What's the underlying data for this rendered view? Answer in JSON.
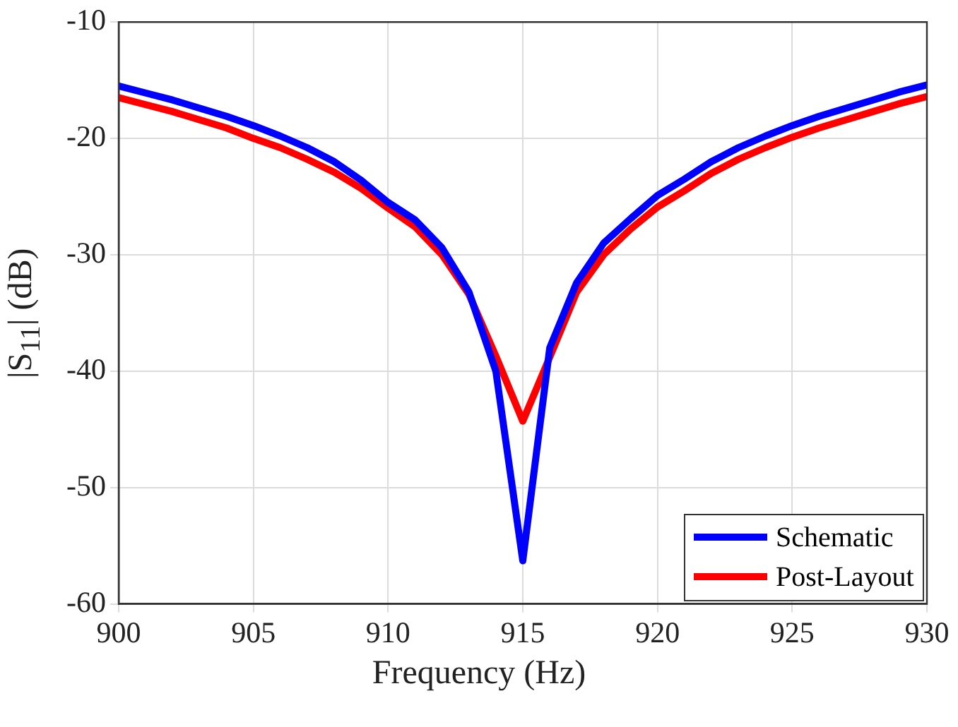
{
  "chart_data": {
    "type": "line",
    "xlabel": "Frequency (Hz)",
    "ylabel": "|S$_{11}$| (dB)",
    "x": [
      900,
      901,
      902,
      903,
      904,
      905,
      906,
      907,
      908,
      909,
      910,
      911,
      912,
      913,
      914,
      915,
      916,
      917,
      918,
      919,
      920,
      921,
      922,
      923,
      924,
      925,
      926,
      927,
      928,
      929,
      930
    ],
    "series": [
      {
        "name": "Schematic",
        "color": "#0000ff",
        "values": [
          -15.5,
          -16.1,
          -16.7,
          -17.4,
          -18.1,
          -18.9,
          -19.8,
          -20.8,
          -22.0,
          -23.6,
          -25.5,
          -27.0,
          -29.4,
          -33.2,
          -40.0,
          -56.3,
          -38.0,
          -32.4,
          -29.0,
          -26.9,
          -24.9,
          -23.5,
          -22.0,
          -20.8,
          -19.8,
          -18.9,
          -18.1,
          -17.4,
          -16.7,
          -16.0,
          -15.4
        ]
      },
      {
        "name": "Post-Layout",
        "color": "#ff0000",
        "values": [
          -16.5,
          -17.1,
          -17.7,
          -18.4,
          -19.1,
          -20.0,
          -20.8,
          -21.8,
          -22.9,
          -24.3,
          -26.0,
          -27.6,
          -30.0,
          -33.4,
          -38.7,
          -44.3,
          -38.8,
          -33.2,
          -30.0,
          -27.8,
          -25.9,
          -24.5,
          -23.0,
          -21.8,
          -20.8,
          -19.9,
          -19.1,
          -18.4,
          -17.7,
          -17.0,
          -16.4
        ]
      }
    ],
    "xlim": [
      900,
      930
    ],
    "xticks": [
      900,
      905,
      910,
      915,
      920,
      925,
      930
    ],
    "ylim": [
      -60,
      -10
    ],
    "yticks": [
      -60,
      -50,
      -40,
      -30,
      -20,
      -10
    ],
    "grid": true,
    "legend": "bottom right",
    "marker": "none",
    "line_style": "solid"
  }
}
